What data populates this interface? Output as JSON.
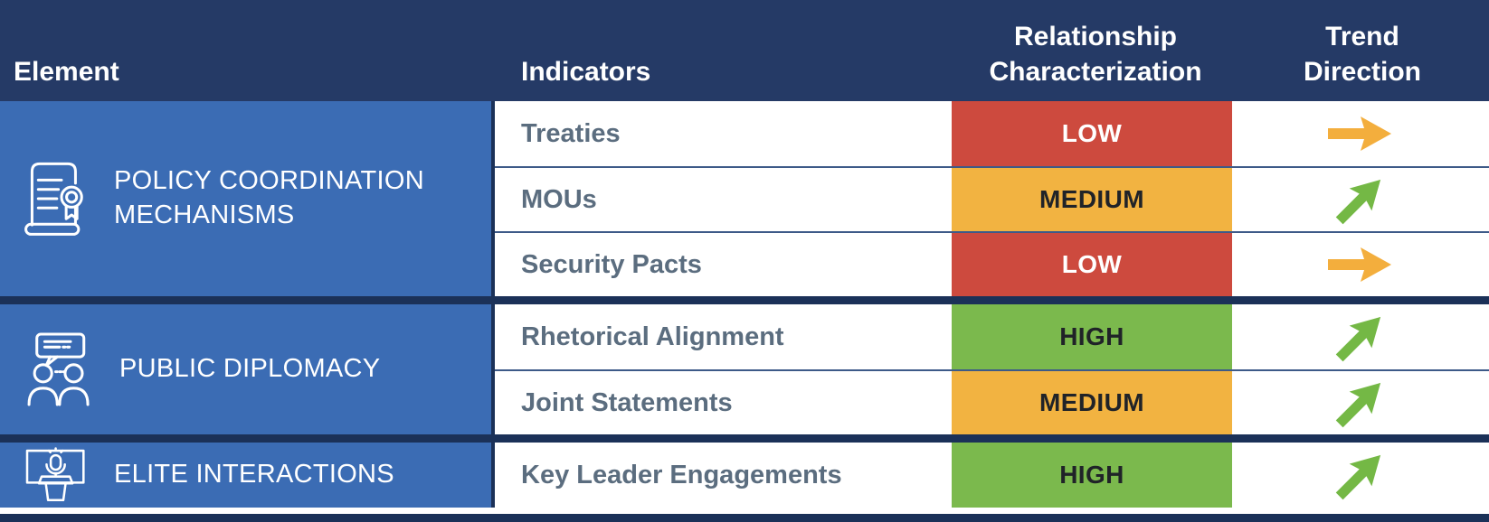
{
  "table": {
    "columns": [
      {
        "label": "Element"
      },
      {
        "label": "Indicators"
      },
      {
        "label": "Relationship Characterization"
      },
      {
        "label": "Trend Direction"
      }
    ],
    "groups": [
      {
        "element": "POLICY COORDINATION MECHANISMS",
        "icon": "certificate-icon",
        "rows": [
          {
            "indicator": "Treaties",
            "characterization": "LOW",
            "trend": "flat"
          },
          {
            "indicator": "MOUs",
            "characterization": "MEDIUM",
            "trend": "up"
          },
          {
            "indicator": "Security Pacts",
            "characterization": "LOW",
            "trend": "flat"
          }
        ]
      },
      {
        "element": "PUBLIC DIPLOMACY",
        "icon": "people-speech-icon",
        "rows": [
          {
            "indicator": "Rhetorical Alignment",
            "characterization": "HIGH",
            "trend": "up"
          },
          {
            "indicator": "Joint Statements",
            "characterization": "MEDIUM",
            "trend": "up"
          }
        ]
      },
      {
        "element": "ELITE INTERACTIONS",
        "icon": "podium-icon",
        "rows": [
          {
            "indicator": "Key Leader Engagements",
            "characterization": "HIGH",
            "trend": "up"
          }
        ]
      }
    ],
    "colors": {
      "header_bg": "#253a66",
      "element_bg": "#3b6cb4",
      "divider_dark": "#1b3158",
      "low": "#cd4a3e",
      "medium": "#f2b341",
      "high": "#7bb94d",
      "low_text": "#ffffff",
      "medium_high_text": "#202328",
      "trend_flat_arrow": "#f3ae3d",
      "trend_up_arrow": "#74b845"
    }
  },
  "chart_data": {
    "type": "table",
    "title": "",
    "columns": [
      "Element",
      "Indicators",
      "Relationship Characterization",
      "Trend Direction"
    ],
    "rows": [
      [
        "POLICY COORDINATION MECHANISMS",
        "Treaties",
        "LOW",
        "flat"
      ],
      [
        "POLICY COORDINATION MECHANISMS",
        "MOUs",
        "MEDIUM",
        "up"
      ],
      [
        "POLICY COORDINATION MECHANISMS",
        "Security Pacts",
        "LOW",
        "up-flat-note: flat"
      ],
      [
        "PUBLIC DIPLOMACY",
        "Rhetorical Alignment",
        "HIGH",
        "up"
      ],
      [
        "PUBLIC DIPLOMACY",
        "Joint Statements",
        "MEDIUM",
        "up"
      ],
      [
        "ELITE INTERACTIONS",
        "Key Leader Engagements",
        "HIGH",
        "up"
      ]
    ],
    "legend": {
      "LOW": "red cell, flat orange arrow",
      "MEDIUM": "orange cell",
      "HIGH": "green cell, rising green arrow"
    }
  }
}
